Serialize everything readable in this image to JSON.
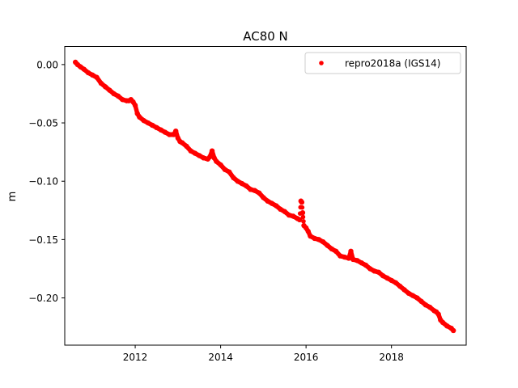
{
  "chart_data": {
    "type": "scatter",
    "title": "AC80 N",
    "xlabel": "",
    "ylabel": "m",
    "xlim": [
      2010.35,
      2019.75
    ],
    "ylim": [
      -0.2405,
      0.0155
    ],
    "xticks": [
      2012,
      2014,
      2016,
      2018
    ],
    "xtick_labels": [
      "2012",
      "2014",
      "2016",
      "2018"
    ],
    "yticks": [
      0.0,
      -0.05,
      -0.1,
      -0.15,
      -0.2
    ],
    "ytick_labels": [
      "0.00",
      "−0.05",
      "−0.10",
      "−0.15",
      "−0.20"
    ],
    "grid": false,
    "legend_position": "top-right",
    "series": [
      {
        "name": "repro2018a (IGS14)",
        "color": "#ff0000",
        "marker": "circle",
        "x": [
          2010.6,
          2010.65,
          2010.72,
          2010.8,
          2010.9,
          2011.0,
          2011.1,
          2011.2,
          2011.3,
          2011.4,
          2011.5,
          2011.6,
          2011.7,
          2011.8,
          2011.85,
          2011.9,
          2011.95,
          2012.0,
          2012.05,
          2012.1,
          2012.2,
          2012.3,
          2012.4,
          2012.5,
          2012.6,
          2012.7,
          2012.8,
          2012.9,
          2012.95,
          2013.0,
          2013.05,
          2013.1,
          2013.2,
          2013.3,
          2013.4,
          2013.5,
          2013.6,
          2013.7,
          2013.75,
          2013.8,
          2013.85,
          2013.9,
          2014.0,
          2014.1,
          2014.2,
          2014.3,
          2014.4,
          2014.5,
          2014.6,
          2014.7,
          2014.8,
          2014.9,
          2015.0,
          2015.1,
          2015.2,
          2015.3,
          2015.4,
          2015.5,
          2015.6,
          2015.7,
          2015.8,
          2015.85,
          2015.88,
          2015.9,
          2015.92,
          2015.95,
          2016.0,
          2016.05,
          2016.1,
          2016.2,
          2016.3,
          2016.4,
          2016.5,
          2016.6,
          2016.7,
          2016.8,
          2016.9,
          2017.0,
          2017.05,
          2017.1,
          2017.2,
          2017.3,
          2017.4,
          2017.5,
          2017.6,
          2017.7,
          2017.8,
          2017.9,
          2018.0,
          2018.1,
          2018.2,
          2018.3,
          2018.4,
          2018.5,
          2018.6,
          2018.7,
          2018.8,
          2018.9,
          2019.0,
          2019.05,
          2019.1,
          2019.15,
          2019.2,
          2019.3,
          2019.4,
          2019.45
        ],
        "y": [
          0.002,
          0.0,
          -0.002,
          -0.004,
          -0.007,
          -0.009,
          -0.011,
          -0.016,
          -0.019,
          -0.022,
          -0.025,
          -0.027,
          -0.03,
          -0.031,
          -0.031,
          -0.03,
          -0.032,
          -0.035,
          -0.042,
          -0.045,
          -0.048,
          -0.05,
          -0.052,
          -0.054,
          -0.056,
          -0.058,
          -0.06,
          -0.06,
          -0.057,
          -0.063,
          -0.066,
          -0.067,
          -0.07,
          -0.074,
          -0.076,
          -0.078,
          -0.08,
          -0.081,
          -0.079,
          -0.074,
          -0.08,
          -0.083,
          -0.086,
          -0.09,
          -0.092,
          -0.097,
          -0.1,
          -0.102,
          -0.104,
          -0.107,
          -0.108,
          -0.11,
          -0.114,
          -0.117,
          -0.119,
          -0.121,
          -0.124,
          -0.126,
          -0.129,
          -0.13,
          -0.132,
          -0.133,
          -0.117,
          -0.118,
          -0.127,
          -0.138,
          -0.14,
          -0.143,
          -0.147,
          -0.149,
          -0.15,
          -0.152,
          -0.155,
          -0.158,
          -0.16,
          -0.164,
          -0.165,
          -0.166,
          -0.16,
          -0.167,
          -0.168,
          -0.17,
          -0.172,
          -0.175,
          -0.177,
          -0.178,
          -0.181,
          -0.183,
          -0.185,
          -0.187,
          -0.19,
          -0.193,
          -0.196,
          -0.198,
          -0.2,
          -0.203,
          -0.206,
          -0.208,
          -0.211,
          -0.212,
          -0.214,
          -0.219,
          -0.221,
          -0.224,
          -0.226,
          -0.228
        ]
      }
    ]
  }
}
